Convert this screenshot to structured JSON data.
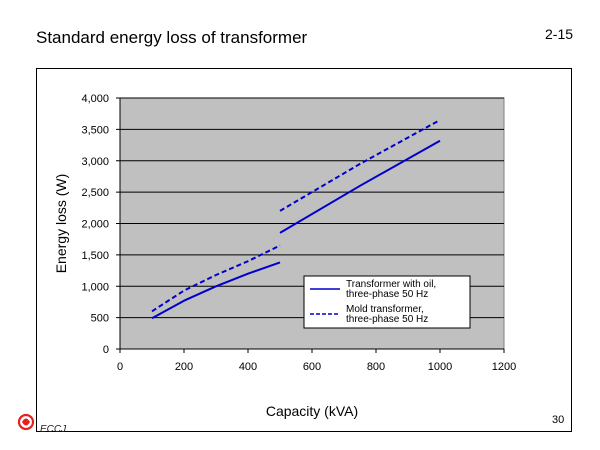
{
  "slide": {
    "title": "Standard energy loss of transformer",
    "page_code": "2-15",
    "page_number": "30",
    "logo_text": "ECCJ"
  },
  "colors": {
    "plot_background": "#c0c0c0",
    "series_line": "#0000cc",
    "logo_red": "#e8201c"
  },
  "chart_data": {
    "type": "line",
    "xlabel": "Capacity (kVA)",
    "ylabel": "Energy loss (W)",
    "xlim": [
      0,
      1200
    ],
    "ylim": [
      0,
      4000
    ],
    "x_ticks": [
      0,
      200,
      400,
      600,
      800,
      1000,
      1200
    ],
    "x_tick_labels": [
      "0",
      "200",
      "400",
      "600",
      "800",
      "1000",
      "1200"
    ],
    "y_ticks": [
      0,
      500,
      1000,
      1500,
      2000,
      2500,
      3000,
      3500,
      4000
    ],
    "y_tick_labels": [
      "0",
      "500",
      "1,000",
      "1,500",
      "2,000",
      "2,500",
      "3,000",
      "3,500",
      "4,000"
    ],
    "grid": true,
    "legend_position": "lower-right",
    "series": [
      {
        "name": "Transformer with oil, three-phase 50 Hz",
        "legend_lines": [
          "Transformer with oil,",
          "three-phase 50 Hz"
        ],
        "style": "solid",
        "segments": [
          [
            [
              100,
              490
            ],
            [
              200,
              770
            ],
            [
              300,
              1000
            ],
            [
              400,
              1200
            ],
            [
              500,
              1380
            ]
          ],
          [
            [
              500,
              1850
            ],
            [
              750,
              2600
            ],
            [
              1000,
              3320
            ]
          ]
        ]
      },
      {
        "name": "Mold transformer, three-phase 50 Hz",
        "legend_lines": [
          "Mold transformer,",
          "three-phase 50 Hz"
        ],
        "style": "dashed",
        "segments": [
          [
            [
              100,
              600
            ],
            [
              200,
              930
            ],
            [
              300,
              1180
            ],
            [
              400,
              1400
            ],
            [
              500,
              1650
            ]
          ],
          [
            [
              500,
              2200
            ],
            [
              750,
              2950
            ],
            [
              1000,
              3650
            ]
          ]
        ]
      }
    ]
  }
}
